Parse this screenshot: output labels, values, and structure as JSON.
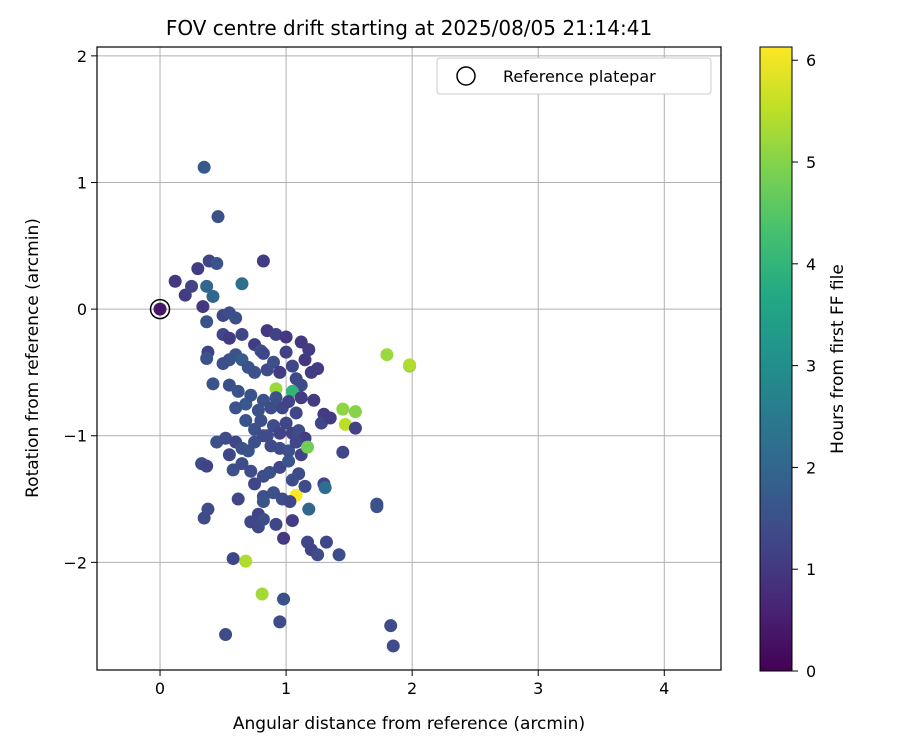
{
  "chart_data": {
    "type": "scatter",
    "title": "FOV centre drift starting at 2025/08/05 21:14:41",
    "xlabel": "Angular distance from reference (arcmin)",
    "ylabel": "Rotation from reference (arcmin)",
    "xlim": [
      -0.5,
      4.45
    ],
    "ylim": [
      -2.85,
      2.07
    ],
    "xticks": [
      0,
      1,
      2,
      3,
      4
    ],
    "xtick_labels": [
      "0",
      "1",
      "2",
      "3",
      "4"
    ],
    "yticks": [
      2,
      1,
      0,
      -1,
      -2
    ],
    "ytick_labels": [
      "2",
      "1",
      "0",
      "−1",
      "−2"
    ],
    "grid": true,
    "legend": {
      "position": "top-right",
      "entries": [
        "Reference platepar"
      ]
    },
    "colorbar": {
      "label": "Hours from first FF file",
      "range": [
        0,
        6.13
      ],
      "ticks": [
        0,
        1,
        2,
        3,
        4,
        5,
        6
      ],
      "tick_labels": [
        "0",
        "1",
        "2",
        "3",
        "4",
        "5",
        "6"
      ],
      "colormap": "viridis"
    },
    "reference_point": {
      "x": 0,
      "y": 0,
      "label": "Reference platepar"
    },
    "points": [
      [
        0.0,
        0.0,
        0.4
      ],
      [
        0.12,
        0.22,
        1.0
      ],
      [
        0.2,
        0.11,
        1.1
      ],
      [
        0.25,
        0.18,
        1.2
      ],
      [
        0.3,
        0.32,
        1.1
      ],
      [
        0.35,
        1.12,
        1.7
      ],
      [
        0.37,
        0.18,
        2.0
      ],
      [
        0.39,
        0.38,
        1.2
      ],
      [
        0.34,
        0.02,
        1.0
      ],
      [
        0.37,
        -0.1,
        1.6
      ],
      [
        0.42,
        0.1,
        2.0
      ],
      [
        0.45,
        0.36,
        1.6
      ],
      [
        0.46,
        0.73,
        1.5
      ],
      [
        0.5,
        -0.05,
        1.3
      ],
      [
        0.55,
        -0.03,
        1.4
      ],
      [
        0.6,
        -0.07,
        1.5
      ],
      [
        0.65,
        0.2,
        2.2
      ],
      [
        0.82,
        0.38,
        1.1
      ],
      [
        0.38,
        -0.34,
        1.2
      ],
      [
        0.37,
        -0.39,
        1.6
      ],
      [
        0.5,
        -0.2,
        1.3
      ],
      [
        0.55,
        -0.23,
        1.1
      ],
      [
        0.65,
        -0.2,
        1.3
      ],
      [
        0.75,
        -0.28,
        1.1
      ],
      [
        0.8,
        -0.33,
        1.5
      ],
      [
        0.85,
        -0.17,
        1.0
      ],
      [
        0.92,
        -0.2,
        1.2
      ],
      [
        1.0,
        -0.22,
        1.0
      ],
      [
        1.12,
        -0.26,
        1.0
      ],
      [
        1.18,
        -0.32,
        1.1
      ],
      [
        1.0,
        -0.34,
        1.2
      ],
      [
        1.15,
        -0.4,
        1.0
      ],
      [
        1.2,
        -0.5,
        1.1
      ],
      [
        1.25,
        -0.47,
        1.1
      ],
      [
        0.42,
        -0.59,
        1.6
      ],
      [
        0.5,
        -0.43,
        1.5
      ],
      [
        0.55,
        -0.4,
        1.5
      ],
      [
        0.6,
        -0.36,
        1.6
      ],
      [
        0.65,
        -0.4,
        1.8
      ],
      [
        0.7,
        -0.46,
        1.6
      ],
      [
        0.75,
        -0.5,
        1.5
      ],
      [
        0.82,
        -0.35,
        1.3
      ],
      [
        0.85,
        -0.48,
        1.4
      ],
      [
        0.9,
        -0.42,
        1.5
      ],
      [
        0.95,
        -0.5,
        1.1
      ],
      [
        1.05,
        -0.45,
        1.3
      ],
      [
        1.08,
        -0.55,
        1.3
      ],
      [
        1.12,
        -0.6,
        1.4
      ],
      [
        0.92,
        -0.63,
        5.2
      ],
      [
        1.05,
        -0.65,
        4.0
      ],
      [
        0.55,
        -0.6,
        1.5
      ],
      [
        0.62,
        -0.65,
        1.6
      ],
      [
        0.68,
        -0.75,
        1.7
      ],
      [
        0.72,
        -0.68,
        1.6
      ],
      [
        0.78,
        -0.8,
        1.5
      ],
      [
        0.82,
        -0.72,
        1.6
      ],
      [
        0.88,
        -0.78,
        1.4
      ],
      [
        0.92,
        -0.7,
        1.5
      ],
      [
        0.97,
        -0.78,
        1.3
      ],
      [
        1.02,
        -0.73,
        1.2
      ],
      [
        1.08,
        -0.82,
        1.3
      ],
      [
        1.12,
        -0.7,
        1.1
      ],
      [
        1.22,
        -0.72,
        1.1
      ],
      [
        0.6,
        -0.78,
        1.6
      ],
      [
        0.68,
        -0.88,
        1.6
      ],
      [
        0.75,
        -0.95,
        1.5
      ],
      [
        0.8,
        -0.88,
        1.5
      ],
      [
        0.85,
        -1.0,
        1.4
      ],
      [
        0.9,
        -0.92,
        1.4
      ],
      [
        0.95,
        -0.98,
        1.2
      ],
      [
        1.0,
        -0.9,
        1.3
      ],
      [
        1.05,
        -0.98,
        1.2
      ],
      [
        1.1,
        -0.96,
        1.4
      ],
      [
        1.15,
        -1.02,
        1.1
      ],
      [
        1.3,
        -0.83,
        1.1
      ],
      [
        1.28,
        -0.9,
        1.3
      ],
      [
        1.35,
        -0.86,
        1.1
      ],
      [
        1.45,
        -0.79,
        5.1
      ],
      [
        1.47,
        -0.91,
        5.5
      ],
      [
        1.55,
        -0.81,
        5.0
      ],
      [
        1.55,
        -0.94,
        1.2
      ],
      [
        1.8,
        -0.36,
        5.2
      ],
      [
        1.98,
        -0.45,
        5.0
      ],
      [
        1.98,
        -0.44,
        5.4
      ],
      [
        0.45,
        -1.05,
        1.5
      ],
      [
        0.52,
        -1.02,
        1.4
      ],
      [
        0.6,
        -1.05,
        1.3
      ],
      [
        0.65,
        -1.1,
        1.5
      ],
      [
        0.7,
        -1.12,
        1.6
      ],
      [
        0.75,
        -1.05,
        1.5
      ],
      [
        0.82,
        -1.0,
        1.4
      ],
      [
        0.88,
        -1.08,
        1.4
      ],
      [
        0.95,
        -1.1,
        1.4
      ],
      [
        1.02,
        -1.12,
        1.5
      ],
      [
        1.08,
        -1.05,
        1.3
      ],
      [
        1.12,
        -1.15,
        1.2
      ],
      [
        1.17,
        -1.09,
        4.8
      ],
      [
        1.45,
        -1.13,
        1.3
      ],
      [
        0.33,
        -1.22,
        1.4
      ],
      [
        0.37,
        -1.24,
        1.2
      ],
      [
        0.55,
        -1.15,
        1.3
      ],
      [
        0.58,
        -1.27,
        1.5
      ],
      [
        0.65,
        -1.22,
        1.4
      ],
      [
        0.72,
        -1.28,
        1.4
      ],
      [
        0.75,
        -1.38,
        1.3
      ],
      [
        0.82,
        -1.32,
        1.4
      ],
      [
        0.87,
        -1.29,
        1.5
      ],
      [
        0.95,
        -1.25,
        1.3
      ],
      [
        1.02,
        -1.2,
        1.6
      ],
      [
        1.05,
        -1.35,
        1.4
      ],
      [
        1.1,
        -1.3,
        1.4
      ],
      [
        1.08,
        -1.47,
        6.1
      ],
      [
        1.15,
        -1.4,
        1.4
      ],
      [
        1.3,
        -1.38,
        1.3
      ],
      [
        1.31,
        -1.41,
        2.2
      ],
      [
        1.72,
        -1.54,
        1.6
      ],
      [
        1.72,
        -1.56,
        1.5
      ],
      [
        0.38,
        -1.58,
        1.4
      ],
      [
        0.35,
        -1.65,
        1.4
      ],
      [
        0.62,
        -1.5,
        1.3
      ],
      [
        0.82,
        -1.48,
        1.5
      ],
      [
        0.82,
        -1.52,
        1.6
      ],
      [
        0.9,
        -1.45,
        1.5
      ],
      [
        0.97,
        -1.5,
        1.4
      ],
      [
        1.03,
        -1.52,
        1.3
      ],
      [
        1.18,
        -1.58,
        2.0
      ],
      [
        0.78,
        -1.62,
        1.2
      ],
      [
        0.72,
        -1.68,
        1.3
      ],
      [
        0.78,
        -1.72,
        1.3
      ],
      [
        0.82,
        -1.66,
        1.4
      ],
      [
        0.92,
        -1.7,
        1.3
      ],
      [
        1.05,
        -1.67,
        1.1
      ],
      [
        0.98,
        -1.81,
        1.0
      ],
      [
        1.17,
        -1.84,
        1.3
      ],
      [
        1.2,
        -1.9,
        1.2
      ],
      [
        1.25,
        -1.94,
        1.4
      ],
      [
        1.32,
        -1.84,
        1.3
      ],
      [
        1.42,
        -1.94,
        1.4
      ],
      [
        0.58,
        -1.97,
        1.3
      ],
      [
        0.68,
        -1.99,
        5.4
      ],
      [
        0.81,
        -2.25,
        5.3
      ],
      [
        0.98,
        -2.29,
        1.5
      ],
      [
        0.95,
        -2.47,
        1.4
      ],
      [
        0.52,
        -2.57,
        1.4
      ],
      [
        1.83,
        -2.5,
        1.4
      ],
      [
        1.85,
        -2.66,
        1.4
      ]
    ]
  }
}
